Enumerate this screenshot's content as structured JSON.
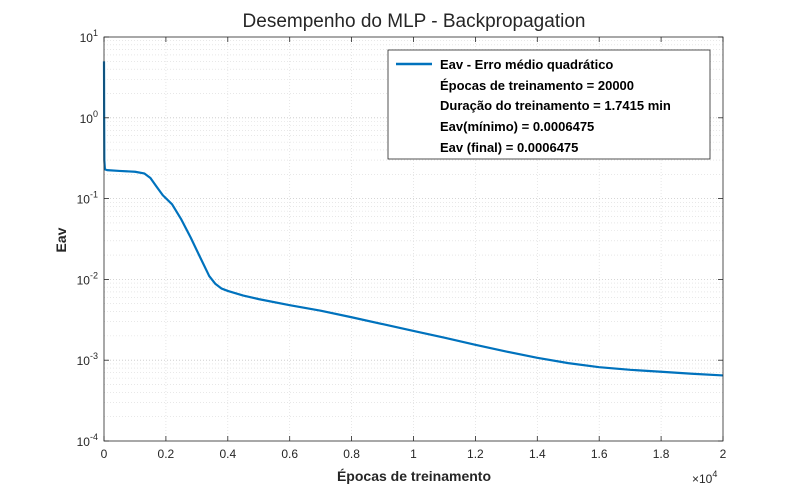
{
  "chart_data": {
    "type": "line",
    "title": "Desempenho do MLP - Backpropagation",
    "xlabel": "Épocas de treinamento",
    "ylabel": "Eav",
    "x_multiplier_label": {
      "base": "×10",
      "exp": "4"
    },
    "xlim": [
      0,
      2
    ],
    "ylim_log10": [
      -4,
      1
    ],
    "yscale": "log",
    "x_ticks": [
      "0",
      "0.2",
      "0.4",
      "0.6",
      "0.8",
      "1",
      "1.2",
      "1.4",
      "1.6",
      "1.8",
      "2"
    ],
    "y_ticks": [
      {
        "base": "10",
        "exp": "1"
      },
      {
        "base": "10",
        "exp": "0"
      },
      {
        "base": "10",
        "exp": "-1"
      },
      {
        "base": "10",
        "exp": "-2"
      },
      {
        "base": "10",
        "exp": "-3"
      },
      {
        "base": "10",
        "exp": "-4"
      }
    ],
    "grid": true,
    "minor_grid": true,
    "line_color": "#0072BD",
    "legend_position": "top-right",
    "legend": {
      "series_name": "Eav - Erro médio quadrático",
      "lines": [
        "Épocas de treinamento = 20000",
        "Duração do treinamento = 1.7415 min",
        "Eav(mínimo) = 0.0006475",
        "Eav (final) = 0.0006475"
      ]
    },
    "series": [
      {
        "name": "Eav - Erro médio quadrático",
        "x": [
          0,
          0.0002,
          0.0005,
          0.001,
          0.003,
          0.01,
          0.05,
          0.1,
          0.13,
          0.15,
          0.17,
          0.19,
          0.22,
          0.25,
          0.28,
          0.31,
          0.34,
          0.36,
          0.38,
          0.4,
          0.45,
          0.5,
          0.6,
          0.7,
          0.8,
          0.9,
          1.0,
          1.1,
          1.2,
          1.3,
          1.4,
          1.5,
          1.6,
          1.7,
          1.8,
          1.9,
          2.0
        ],
        "y": [
          5,
          3,
          1,
          0.3,
          0.23,
          0.225,
          0.22,
          0.215,
          0.205,
          0.18,
          0.14,
          0.11,
          0.085,
          0.055,
          0.033,
          0.019,
          0.011,
          0.0088,
          0.0077,
          0.0072,
          0.0063,
          0.0057,
          0.0048,
          0.0041,
          0.0034,
          0.0028,
          0.0023,
          0.0019,
          0.00155,
          0.00128,
          0.00107,
          0.00092,
          0.00082,
          0.00076,
          0.00072,
          0.00068,
          0.0006475
        ]
      }
    ]
  }
}
